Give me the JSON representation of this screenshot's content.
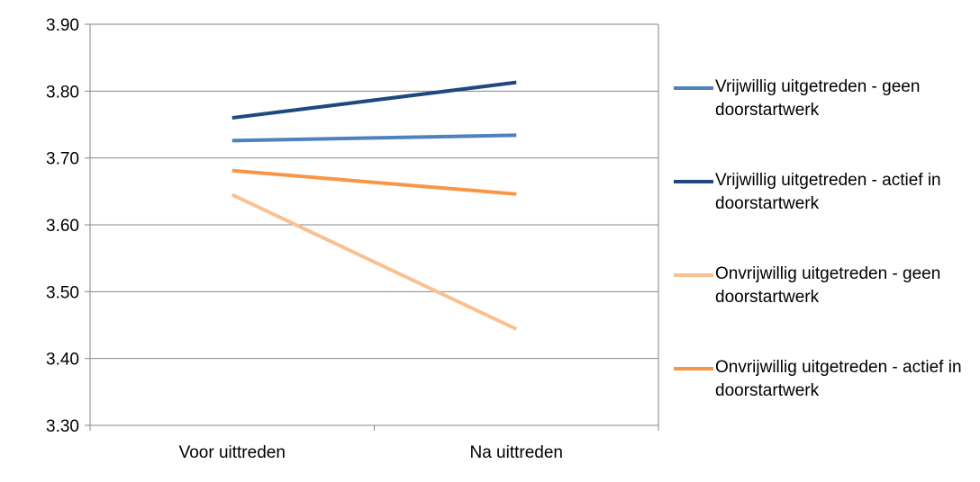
{
  "chart_data": {
    "type": "line",
    "categories": [
      "Voor uittreden",
      "Na uittreden"
    ],
    "ylim": [
      3.3,
      3.9
    ],
    "yticks": [
      "3.90",
      "3.80",
      "3.70",
      "3.60",
      "3.50",
      "3.40",
      "3.30"
    ],
    "ytick_values": [
      3.9,
      3.8,
      3.7,
      3.6,
      3.5,
      3.4,
      3.3
    ],
    "grid": true,
    "legend_position": "right",
    "series": [
      {
        "name": "Vrijwillig uitgetreden - geen doorstartwerk",
        "values": [
          3.726,
          3.734
        ],
        "color": "#4f81bd"
      },
      {
        "name": "Vrijwillig uitgetreden - actief in doorstartwerk",
        "values": [
          3.76,
          3.813
        ],
        "color": "#1f497d"
      },
      {
        "name": "Onvrijwillig uitgetreden - geen doorstartwerk",
        "values": [
          3.645,
          3.444
        ],
        "color": "#fac090"
      },
      {
        "name": "Onvrijwillig uitgetreden - actief in doorstartwerk",
        "values": [
          3.681,
          3.646
        ],
        "color": "#f79646"
      }
    ]
  }
}
